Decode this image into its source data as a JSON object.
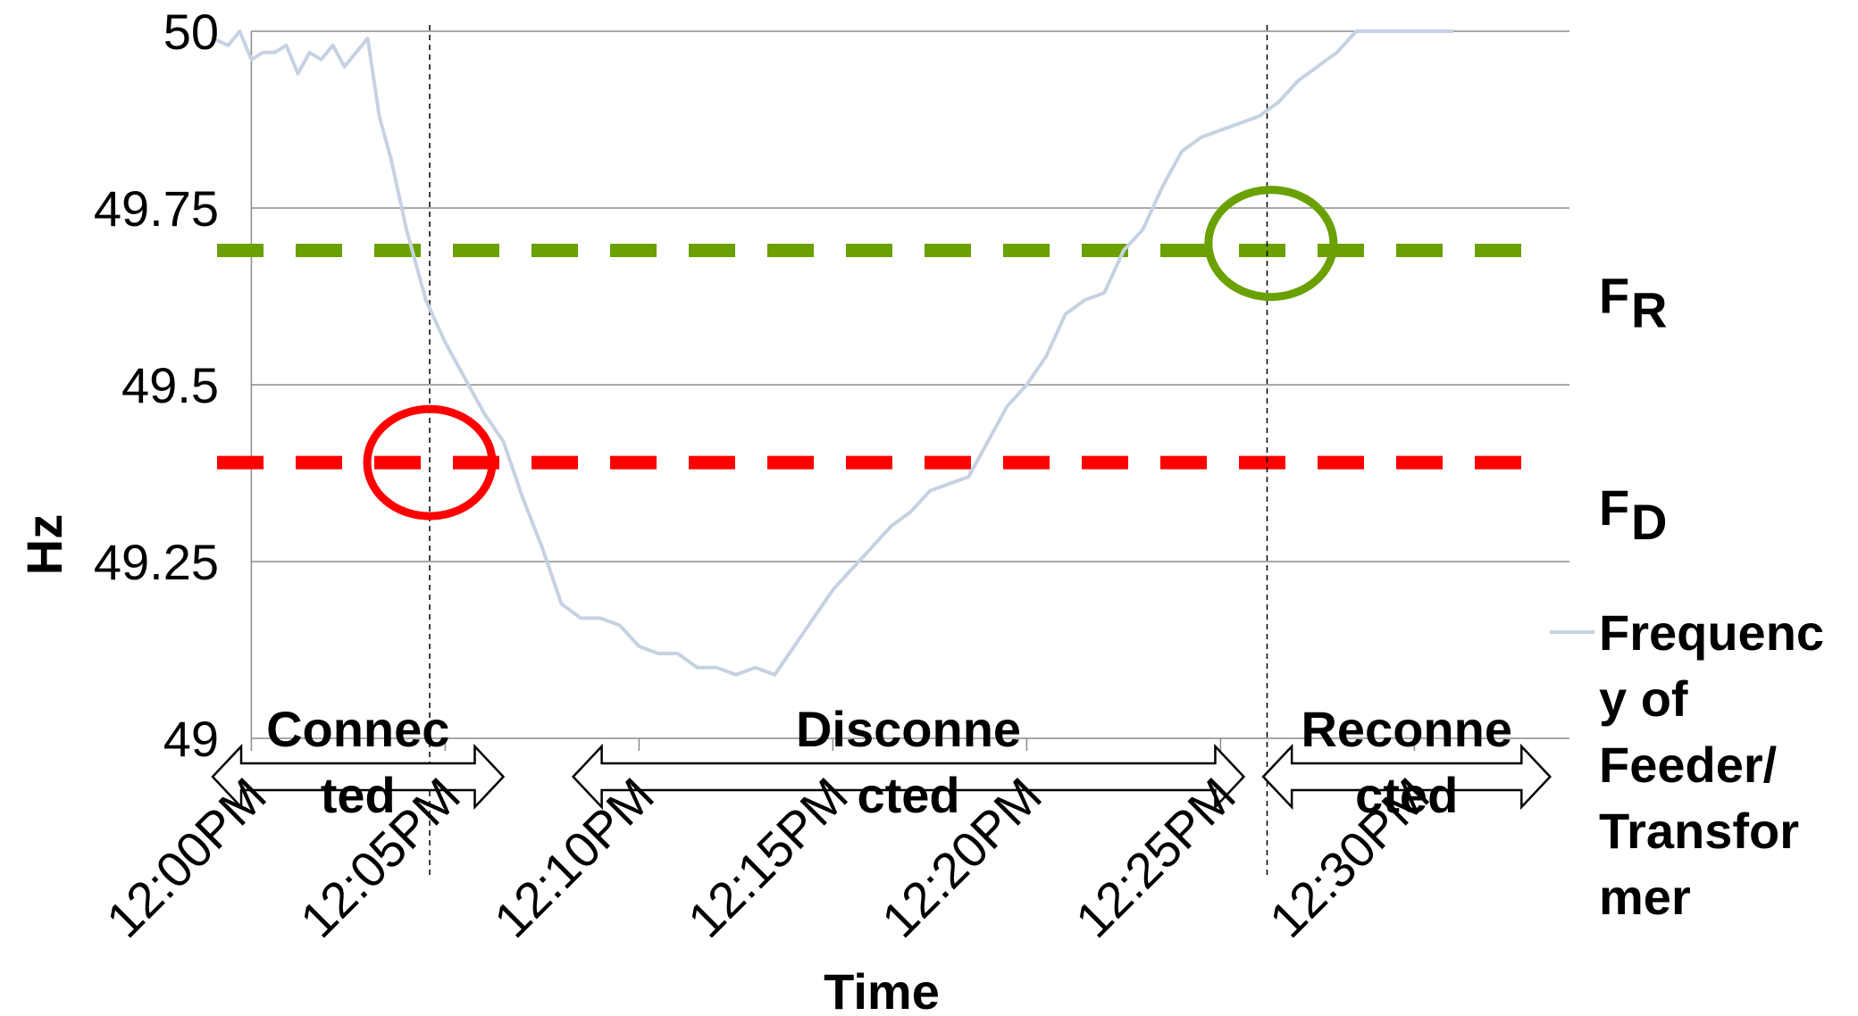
{
  "chart_data": {
    "type": "line",
    "title": "",
    "xlabel": "Time",
    "ylabel": "Hz",
    "ylim": [
      49,
      50
    ],
    "yticks": [
      "50",
      "49.75",
      "49.5",
      "49.25",
      "49"
    ],
    "ytick_values": [
      50,
      49.75,
      49.5,
      49.25,
      49
    ],
    "xlim": [
      -1,
      34
    ],
    "xticks": [
      "12:00PM",
      "12:05PM",
      "12:10PM",
      "12:15PM",
      "12:20PM",
      "12:25PM",
      "12:30PM"
    ],
    "xtick_values": [
      0,
      5,
      10,
      15,
      20,
      25,
      30
    ],
    "grid": true,
    "series": [
      {
        "name": "Frequency of Feeder/ Transformer",
        "color": "#c6d2e3",
        "x": [
          -1,
          -0.6,
          -0.3,
          0,
          0.3,
          0.6,
          0.9,
          1.2,
          1.5,
          1.8,
          2.1,
          2.4,
          2.7,
          3.0,
          3.3,
          3.6,
          4.0,
          4.5,
          5.0,
          5.5,
          6.0,
          6.5,
          7.0,
          7.5,
          8.0,
          8.5,
          9.0,
          9.5,
          10.0,
          10.5,
          11.0,
          11.5,
          12.0,
          12.5,
          13.0,
          13.5,
          14.0,
          14.5,
          15.0,
          15.5,
          16.0,
          16.5,
          17.0,
          17.5,
          18.0,
          18.5,
          19.0,
          19.5,
          20.0,
          20.5,
          21.0,
          21.5,
          22.0,
          22.5,
          23.0,
          23.5,
          24.0,
          24.5,
          25.0,
          25.5,
          26.0,
          26.5,
          27.0,
          27.5,
          28.0,
          28.5,
          29.0,
          29.5,
          30.0,
          30.5,
          31.0
        ],
        "values": [
          49.99,
          49.98,
          50.0,
          49.96,
          49.97,
          49.97,
          49.98,
          49.94,
          49.97,
          49.96,
          49.98,
          49.95,
          49.97,
          49.99,
          49.88,
          49.82,
          49.72,
          49.62,
          49.56,
          49.51,
          49.46,
          49.42,
          49.34,
          49.27,
          49.19,
          49.17,
          49.17,
          49.16,
          49.13,
          49.12,
          49.12,
          49.1,
          49.1,
          49.09,
          49.1,
          49.09,
          49.13,
          49.17,
          49.21,
          49.24,
          49.27,
          49.3,
          49.32,
          49.35,
          49.36,
          49.37,
          49.42,
          49.47,
          49.5,
          49.54,
          49.6,
          49.62,
          49.63,
          49.69,
          49.72,
          49.78,
          49.83,
          49.85,
          49.86,
          49.87,
          49.88,
          49.9,
          49.93,
          49.95,
          49.97,
          50.0,
          50.0,
          50.0,
          50.0,
          50.0,
          50.0
        ]
      }
    ],
    "thresholds": [
      {
        "label": "F",
        "sub": "R",
        "value": 49.69,
        "color": "#6aa000"
      },
      {
        "label": "F",
        "sub": "D",
        "value": 49.39,
        "color": "#ff0000"
      }
    ],
    "event_markers": [
      {
        "x": 4.6,
        "y": 49.39,
        "color": "#ff0000"
      },
      {
        "x": 26.3,
        "y": 49.7,
        "color": "#6aa000"
      }
    ],
    "event_lines_x": [
      4.6,
      26.2
    ],
    "phases": [
      {
        "label_line1": "Connec",
        "label_line2": "ted",
        "x_from": -1,
        "x_to": 6.5
      },
      {
        "label_line1": "Disconne",
        "label_line2": "cted",
        "x_from": 8.3,
        "x_to": 25.6
      },
      {
        "label_line1": "Reconne",
        "label_line2": "cted",
        "x_from": 26.1,
        "x_to": 33.5
      }
    ],
    "legend": {
      "placement": "right",
      "label_lines": [
        "Frequenc",
        "y of",
        "Feeder/",
        "Transfor",
        "mer"
      ]
    }
  }
}
